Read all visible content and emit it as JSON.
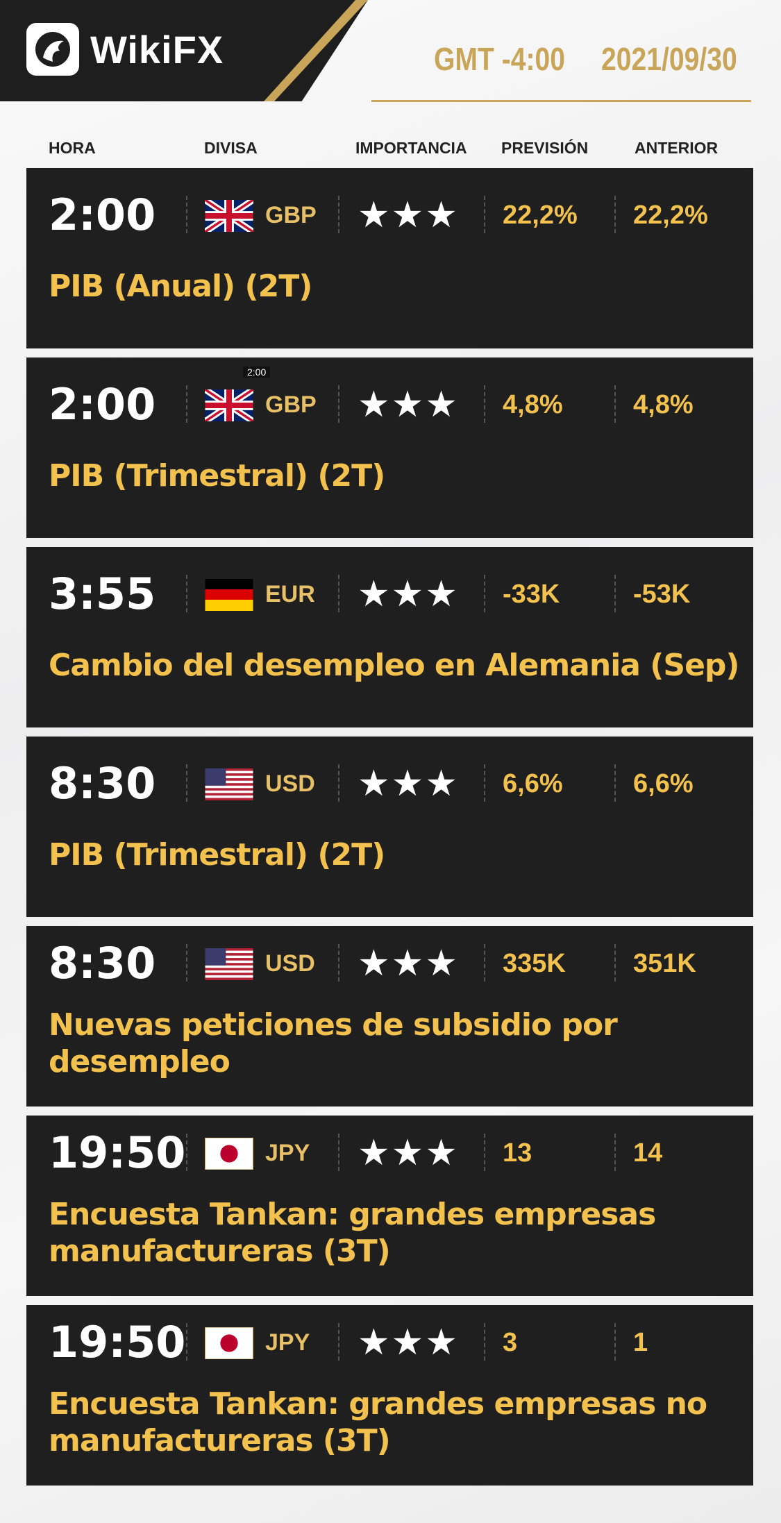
{
  "brand": {
    "name": "WikiFX",
    "logo_icon": "eagle-logo-icon"
  },
  "header": {
    "timezone": "GMT -4:00",
    "date": "2021/09/30"
  },
  "colors": {
    "gold": "#f2c14e",
    "header_gold": "#c9a55a",
    "card_bg": "#1f1f1f"
  },
  "columns": {
    "time": "HORA",
    "currency": "DIVISA",
    "importance": "IMPORTANCIA",
    "forecast": "PREVISIÓN",
    "previous": "ANTERIOR"
  },
  "events": [
    {
      "time": "2:00",
      "flag": "uk",
      "currency": "GBP",
      "stars": 3,
      "stars_text": "★★★",
      "forecast": "22,2%",
      "previous": "22,2%",
      "title": "PIB (Anual) (2T)"
    },
    {
      "time": "2:00",
      "flag": "uk",
      "currency": "GBP",
      "stars": 3,
      "stars_text": "★★★",
      "forecast": "4,8%",
      "previous": "4,8%",
      "title": "PIB (Trimestral) (2T)",
      "tooltip": "2:00"
    },
    {
      "time": "3:55",
      "flag": "de",
      "currency": "EUR",
      "stars": 3,
      "stars_text": "★★★",
      "forecast": "-33K",
      "previous": "-53K",
      "title": "Cambio del desempleo en Alemania (Sep)"
    },
    {
      "time": "8:30",
      "flag": "us",
      "currency": "USD",
      "stars": 3,
      "stars_text": "★★★",
      "forecast": "6,6%",
      "previous": "6,6%",
      "title": "PIB (Trimestral) (2T)"
    },
    {
      "time": "8:30",
      "flag": "us",
      "currency": "USD",
      "stars": 3,
      "stars_text": "★★★",
      "forecast": "335K",
      "previous": "351K",
      "title": "Nuevas peticiones de subsidio por desempleo"
    },
    {
      "time": "19:50",
      "flag": "jp",
      "currency": "JPY",
      "stars": 3,
      "stars_text": "★★★",
      "forecast": "13",
      "previous": "14",
      "title": "Encuesta Tankan: grandes empresas manufactureras (3T)"
    },
    {
      "time": "19:50",
      "flag": "jp",
      "currency": "JPY",
      "stars": 3,
      "stars_text": "★★★",
      "forecast": "3",
      "previous": "1",
      "title": "Encuesta Tankan: grandes empresas no manufactureras (3T)"
    }
  ]
}
